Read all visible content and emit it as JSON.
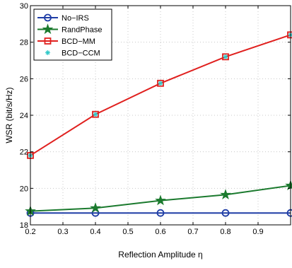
{
  "chart_data": {
    "type": "line",
    "title": "",
    "xlabel": "Reflection Amplitude η",
    "ylabel": "WSR (bit/s/Hz)",
    "xlim": [
      0.2,
      1.0
    ],
    "ylim": [
      18,
      30
    ],
    "xticks": [
      0.2,
      0.3,
      0.4,
      0.5,
      0.6,
      0.7,
      0.8,
      0.9
    ],
    "yticks": [
      18,
      20,
      22,
      24,
      26,
      28,
      30
    ],
    "grid": true,
    "legend_position": "top-left",
    "series": [
      {
        "name": "No−IRS",
        "color": "#1f3da6",
        "marker": "circle",
        "x": [
          0.2,
          0.4,
          0.6,
          0.8,
          1.0
        ],
        "y": [
          18.65,
          18.65,
          18.65,
          18.65,
          18.65
        ]
      },
      {
        "name": "RandPhase",
        "color": "#1b7a2e",
        "marker": "star",
        "x": [
          0.2,
          0.4,
          0.6,
          0.8,
          1.0
        ],
        "y": [
          18.75,
          18.92,
          19.33,
          19.65,
          20.15
        ]
      },
      {
        "name": "BCD−MM",
        "color": "#e0201e",
        "marker": "square",
        "x": [
          0.2,
          0.4,
          0.6,
          0.8,
          1.0
        ],
        "y": [
          21.8,
          24.05,
          25.75,
          27.2,
          28.4
        ]
      },
      {
        "name": "BCD−CCM",
        "color": "#2ec8c8",
        "marker": "asterisk",
        "x": [
          0.2,
          0.4,
          0.6,
          0.8,
          1.0
        ],
        "y": [
          21.8,
          24.05,
          25.75,
          27.2,
          28.4
        ]
      }
    ]
  }
}
